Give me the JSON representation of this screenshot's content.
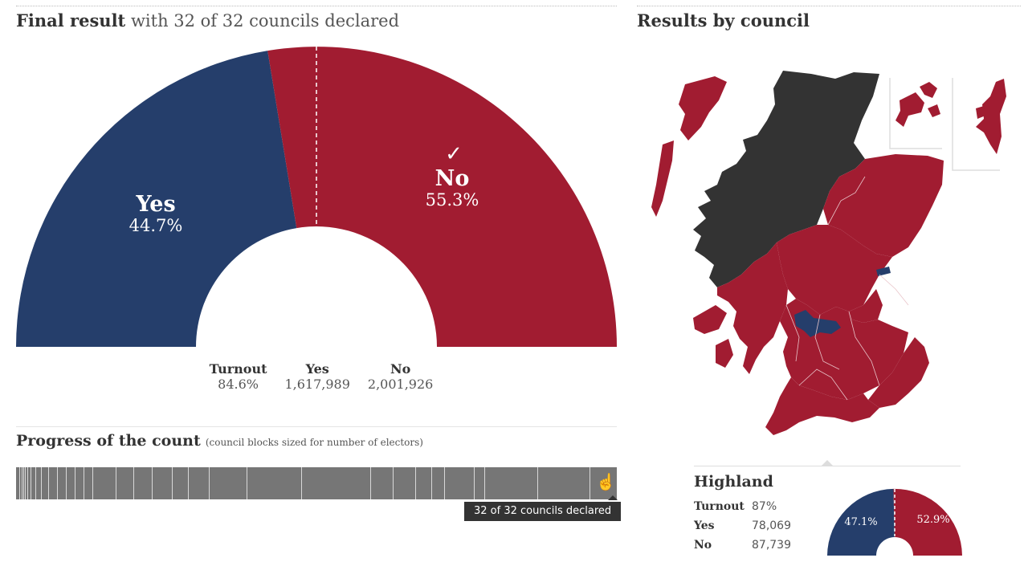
{
  "final": {
    "title_bold": "Final result",
    "title_rest": "with 32 of 32 councils declared"
  },
  "chart_data": [
    {
      "type": "pie",
      "title": "Final result",
      "series": [
        {
          "name": "Yes",
          "value": 44.7,
          "label": "44.7%",
          "color": "#253e6b"
        },
        {
          "name": "No",
          "value": 55.3,
          "label": "55.3%",
          "color": "#a11c31"
        }
      ]
    },
    {
      "type": "pie",
      "title": "Highland",
      "series": [
        {
          "name": "Yes",
          "value": 47.1,
          "label": "47.1%",
          "color": "#253e6b"
        },
        {
          "name": "No",
          "value": 52.9,
          "label": "52.9%",
          "color": "#a11c31"
        }
      ]
    }
  ],
  "result": {
    "yes_name": "Yes",
    "yes_pct": "44.7%",
    "no_name": "No",
    "no_pct": "55.3%",
    "winner_mark": "✓"
  },
  "stats": [
    {
      "label": "Turnout",
      "value": "84.6%"
    },
    {
      "label": "Yes",
      "value": "1,617,989"
    },
    {
      "label": "No",
      "value": "2,001,926"
    }
  ],
  "progress": {
    "title_bold": "Progress of the count",
    "title_note": "(council blocks sized for number of electors)",
    "tooltip": "32 of 32 councils declared"
  },
  "map": {
    "title": "Results by council",
    "colors": {
      "yes": "#253e6b",
      "no": "#a11c31",
      "undeclared": "#333333"
    }
  },
  "council": {
    "name": "Highland",
    "rows": [
      {
        "label": "Turnout",
        "value": "87%"
      },
      {
        "label": "Yes",
        "value": "78,069"
      },
      {
        "label": "No",
        "value": "87,739"
      }
    ],
    "yes_pct": "47.1%",
    "no_pct": "52.9%"
  }
}
